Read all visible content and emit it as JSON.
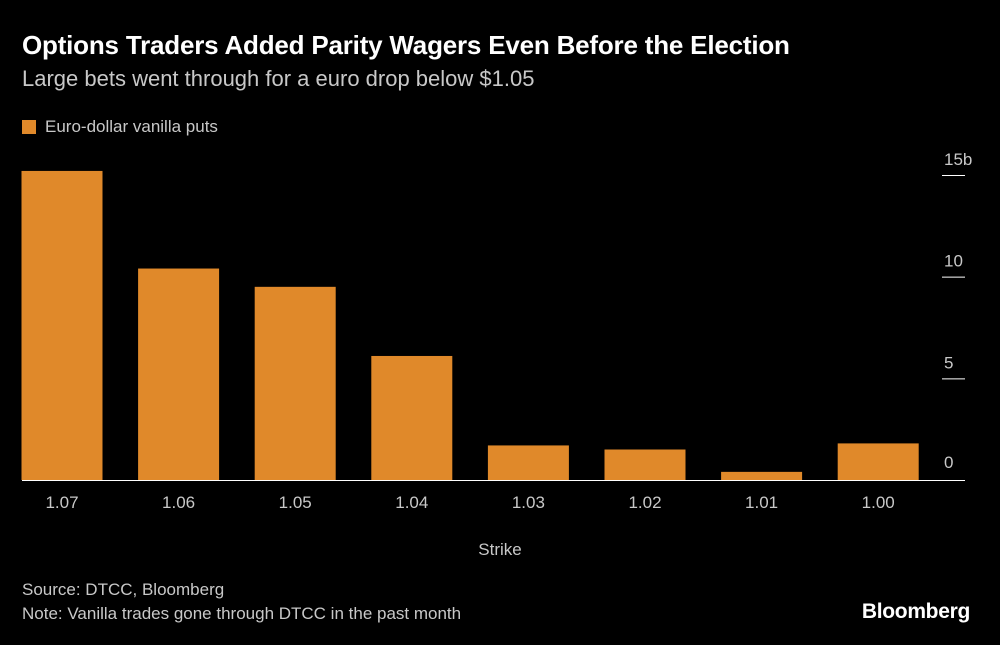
{
  "colors": {
    "bar": "#E0892A",
    "background": "#000000",
    "axis": "#ffffff"
  },
  "header": {
    "title": "Options Traders Added Parity Wagers Even Before the Election",
    "subtitle": "Large bets went through for a euro drop below $1.05"
  },
  "legend": {
    "label": "Euro-dollar vanilla puts"
  },
  "chart_data": {
    "type": "bar",
    "title": "Options Traders Added Parity Wagers Even Before the Election",
    "subtitle": "Large bets went through for a euro drop below $1.05",
    "xlabel": "Strike",
    "ylabel": "",
    "categories": [
      "1.07",
      "1.06",
      "1.05",
      "1.04",
      "1.03",
      "1.02",
      "1.01",
      "1.00"
    ],
    "series": [
      {
        "name": "Euro-dollar vanilla puts",
        "values": [
          15.2,
          10.4,
          9.5,
          6.1,
          1.7,
          1.5,
          0.4,
          1.8
        ]
      }
    ],
    "ylim": [
      0,
      15
    ],
    "yticks": [
      0,
      5,
      10,
      15
    ],
    "ytick_labels": [
      "0",
      "5",
      "10",
      "15b"
    ],
    "legend_position": "top-left",
    "y_axis_side": "right",
    "grid": false
  },
  "footer": {
    "source": "Source: DTCC, Bloomberg",
    "note": "Note: Vanilla trades gone through DTCC in the past month",
    "brand": "Bloomberg"
  }
}
